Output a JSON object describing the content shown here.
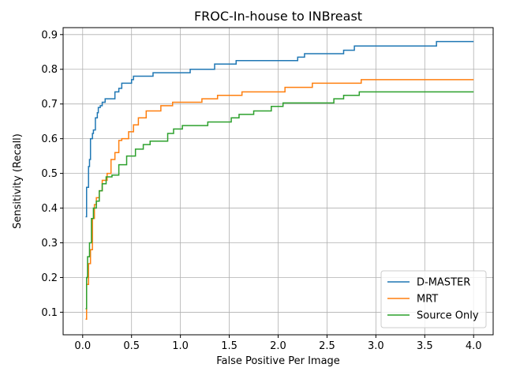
{
  "chart_data": {
    "type": "line",
    "title": "FROC-In-house to INBreast",
    "xlabel": "False Positive Per Image",
    "ylabel": "Sensitivity (Recall)",
    "xlim": [
      -0.2,
      4.2
    ],
    "ylim": [
      0.035,
      0.92
    ],
    "xticks": [
      0.0,
      0.5,
      1.0,
      1.5,
      2.0,
      2.5,
      3.0,
      3.5,
      4.0
    ],
    "xtick_labels": [
      "0.0",
      "0.5",
      "1.0",
      "1.5",
      "2.0",
      "2.5",
      "3.0",
      "3.5",
      "4.0"
    ],
    "yticks": [
      0.1,
      0.2,
      0.3,
      0.4,
      0.5,
      0.6,
      0.7,
      0.8,
      0.9
    ],
    "ytick_labels": [
      "0.1",
      "0.2",
      "0.3",
      "0.4",
      "0.5",
      "0.6",
      "0.7",
      "0.8",
      "0.9"
    ],
    "grid": true,
    "legend_position": "lower-right",
    "step": true,
    "series": [
      {
        "name": "D-MASTER",
        "color": "#1f77b4",
        "x": [
          0.03,
          0.04,
          0.06,
          0.07,
          0.08,
          0.1,
          0.11,
          0.13,
          0.15,
          0.16,
          0.18,
          0.2,
          0.23,
          0.26,
          0.33,
          0.37,
          0.4,
          0.5,
          0.52,
          0.72,
          1.1,
          1.35,
          1.57,
          2.2,
          2.27,
          2.67,
          2.78,
          3.62,
          4.0
        ],
        "y": [
          0.375,
          0.46,
          0.52,
          0.54,
          0.6,
          0.615,
          0.625,
          0.66,
          0.675,
          0.69,
          0.695,
          0.705,
          0.715,
          0.715,
          0.735,
          0.745,
          0.76,
          0.77,
          0.78,
          0.79,
          0.8,
          0.815,
          0.825,
          0.835,
          0.845,
          0.855,
          0.867,
          0.88,
          0.88
        ]
      },
      {
        "name": "MRT",
        "color": "#ff7f0e",
        "x": [
          0.03,
          0.04,
          0.06,
          0.08,
          0.1,
          0.12,
          0.14,
          0.17,
          0.2,
          0.25,
          0.29,
          0.33,
          0.37,
          0.4,
          0.47,
          0.52,
          0.57,
          0.65,
          0.8,
          0.92,
          1.22,
          1.38,
          1.63,
          2.07,
          2.35,
          2.85,
          4.0
        ],
        "y": [
          0.08,
          0.18,
          0.24,
          0.28,
          0.37,
          0.41,
          0.43,
          0.45,
          0.48,
          0.5,
          0.54,
          0.56,
          0.595,
          0.6,
          0.62,
          0.64,
          0.66,
          0.68,
          0.695,
          0.705,
          0.715,
          0.725,
          0.735,
          0.748,
          0.76,
          0.77,
          0.77
        ]
      },
      {
        "name": "Source Only",
        "color": "#2ca02c",
        "x": [
          0.03,
          0.04,
          0.05,
          0.07,
          0.09,
          0.11,
          0.14,
          0.17,
          0.2,
          0.24,
          0.3,
          0.37,
          0.45,
          0.54,
          0.62,
          0.69,
          0.87,
          0.93,
          1.02,
          1.28,
          1.52,
          1.6,
          1.75,
          1.93,
          2.05,
          2.57,
          2.67,
          2.83,
          4.0
        ],
        "y": [
          0.11,
          0.2,
          0.26,
          0.3,
          0.37,
          0.4,
          0.42,
          0.45,
          0.47,
          0.49,
          0.495,
          0.525,
          0.55,
          0.57,
          0.583,
          0.593,
          0.615,
          0.628,
          0.638,
          0.648,
          0.66,
          0.67,
          0.68,
          0.693,
          0.703,
          0.715,
          0.725,
          0.735,
          0.735
        ]
      }
    ]
  }
}
